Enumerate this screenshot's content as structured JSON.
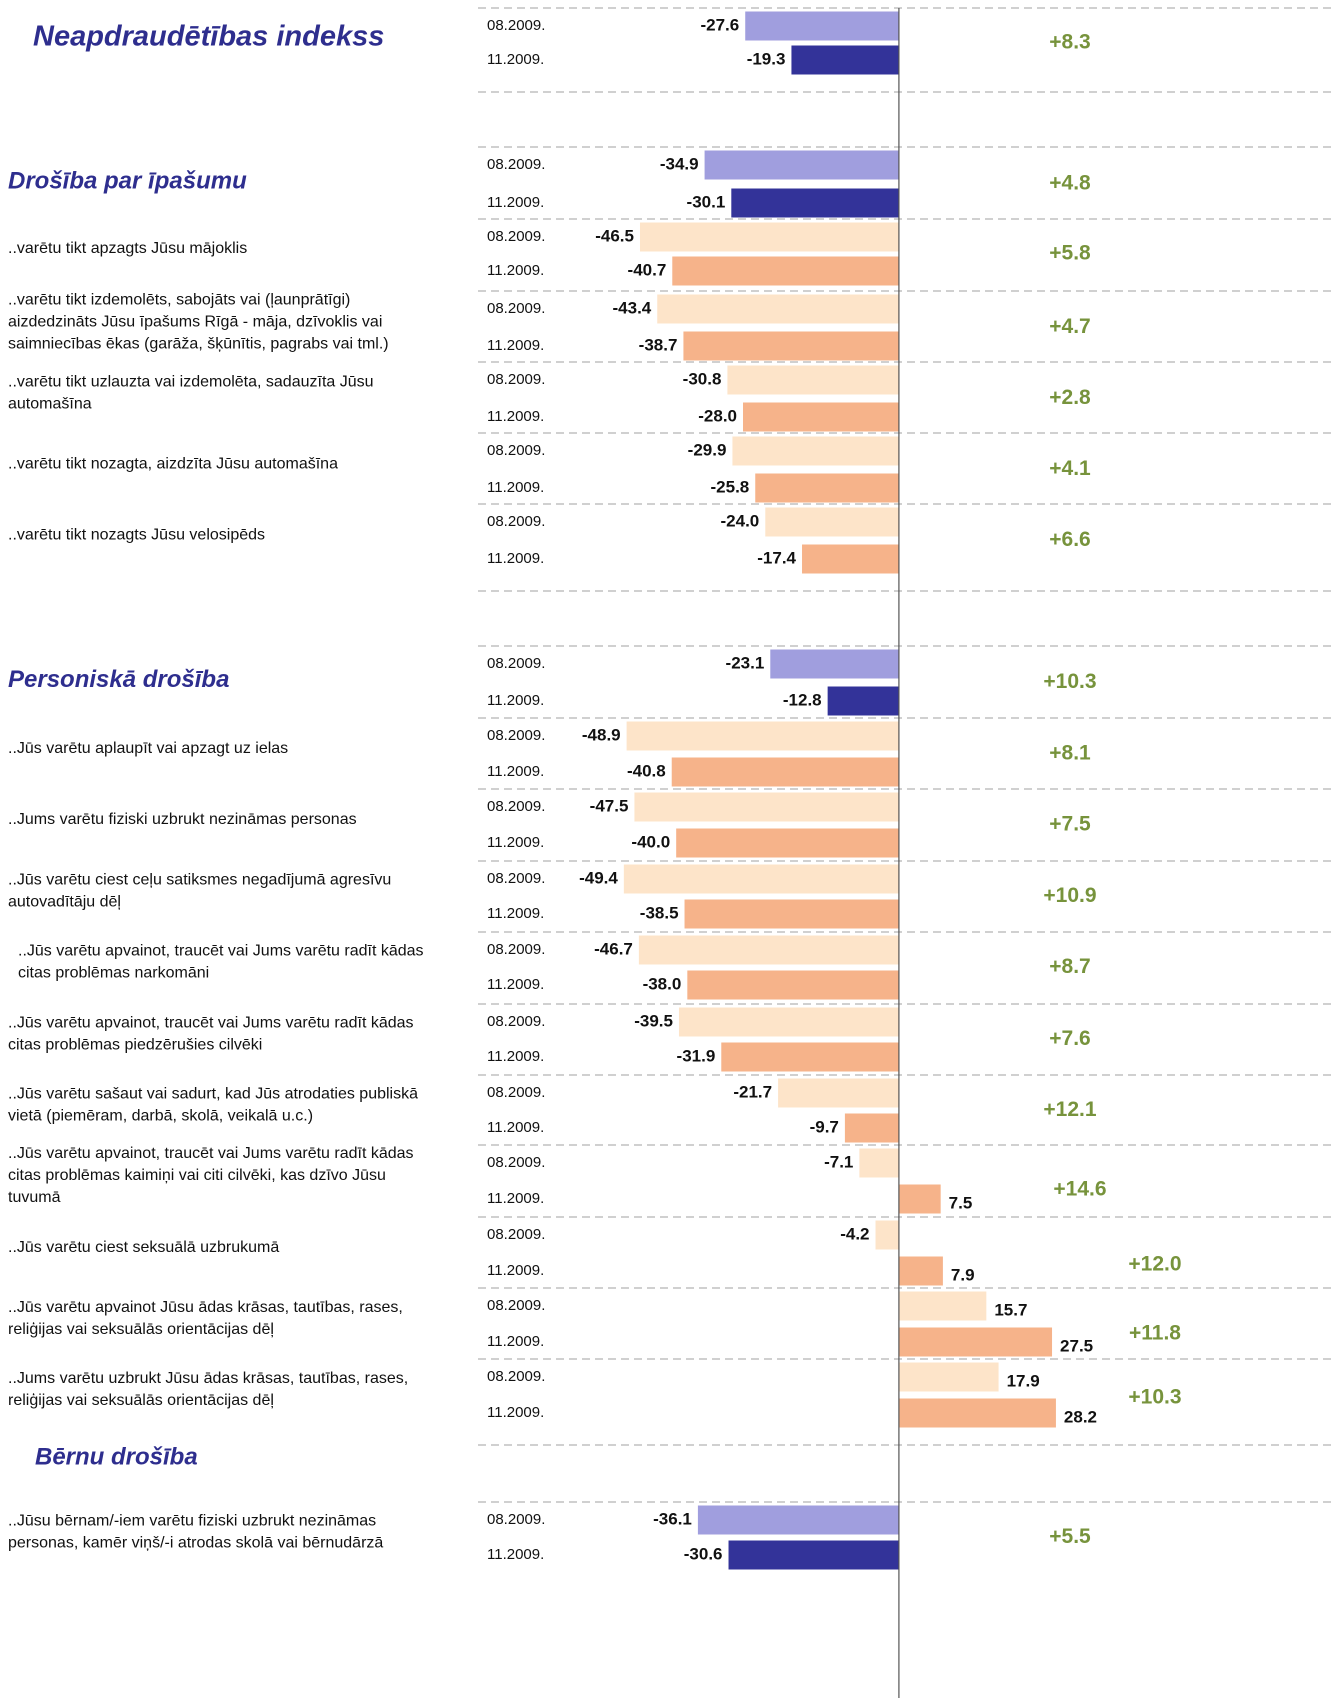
{
  "chart_data": {
    "type": "bar",
    "orientation": "horizontal",
    "xlim": [
      -50,
      60
    ],
    "change_color": "#77933c",
    "subheading": "Bērnu drošība",
    "rows": [
      {
        "label": [
          "Neapdraudētības indekss"
        ],
        "categories": [
          "08.2009.",
          "11.2009."
        ],
        "values": [
          -27.6,
          -19.3
        ],
        "value_labels": [
          "-27.6",
          "-19.3"
        ],
        "colors": [
          "#a09ede",
          "#333399"
        ],
        "change": 8.3,
        "change_label": "+8.3"
      },
      {
        "label": [
          "Drošība par īpašumu"
        ],
        "categories": [
          "08.2009.",
          "11.2009."
        ],
        "values": [
          -34.9,
          -30.1
        ],
        "value_labels": [
          "-34.9",
          "-30.1"
        ],
        "colors": [
          "#a09ede",
          "#333399"
        ],
        "change": 4.8,
        "change_label": "+4.8"
      },
      {
        "label": [
          "..varētu tikt apzagts Jūsu mājoklis"
        ],
        "categories": [
          "08.2009.",
          "11.2009."
        ],
        "values": [
          -46.5,
          -40.7
        ],
        "value_labels": [
          "-46.5",
          "-40.7"
        ],
        "colors": [
          "#fde4c9",
          "#f6b38a"
        ],
        "change": 5.8,
        "change_label": "+5.8"
      },
      {
        "label": [
          "..varētu tikt izdemolēts, sabojāts vai (ļaunprātīgi)",
          "aizdedzināts Jūsu īpašums Rīgā - māja, dzīvoklis vai",
          "saimniecības ēkas (garāža, šķūnītis, pagrabs vai tml.)"
        ],
        "categories": [
          "08.2009.",
          "11.2009."
        ],
        "values": [
          -43.4,
          -38.7
        ],
        "value_labels": [
          "-43.4",
          "-38.7"
        ],
        "colors": [
          "#fde4c9",
          "#f6b38a"
        ],
        "change": 4.7,
        "change_label": "+4.7"
      },
      {
        "label": [
          "..varētu tikt uzlauzta vai izdemolēta, sadauzīta Jūsu",
          "automašīna"
        ],
        "categories": [
          "08.2009.",
          "11.2009."
        ],
        "values": [
          -30.8,
          -28.0
        ],
        "value_labels": [
          "-30.8",
          "-28.0"
        ],
        "colors": [
          "#fde4c9",
          "#f6b38a"
        ],
        "change": 2.8,
        "change_label": "+2.8"
      },
      {
        "label": [
          "..varētu tikt nozagta, aizdzīta Jūsu automašīna"
        ],
        "categories": [
          "08.2009.",
          "11.2009."
        ],
        "values": [
          -29.9,
          -25.8
        ],
        "value_labels": [
          "-29.9",
          "-25.8"
        ],
        "colors": [
          "#fde4c9",
          "#f6b38a"
        ],
        "change": 4.1,
        "change_label": "+4.1"
      },
      {
        "label": [
          "..varētu tikt nozagts Jūsu velosipēds"
        ],
        "categories": [
          "08.2009.",
          "11.2009."
        ],
        "values": [
          -24.0,
          -17.4
        ],
        "value_labels": [
          "-24.0",
          "-17.4"
        ],
        "colors": [
          "#fde4c9",
          "#f6b38a"
        ],
        "change": 6.6,
        "change_label": "+6.6"
      },
      {
        "label": [
          "Personiskā drošība"
        ],
        "categories": [
          "08.2009.",
          "11.2009."
        ],
        "values": [
          -23.1,
          -12.8
        ],
        "value_labels": [
          "-23.1",
          "-12.8"
        ],
        "colors": [
          "#a09ede",
          "#333399"
        ],
        "change": 10.3,
        "change_label": "+10.3"
      },
      {
        "label": [
          "..Jūs varētu aplaupīt vai apzagt uz ielas"
        ],
        "categories": [
          "08.2009.",
          "11.2009."
        ],
        "values": [
          -48.9,
          -40.8
        ],
        "value_labels": [
          "-48.9",
          "-40.8"
        ],
        "colors": [
          "#fde4c9",
          "#f6b38a"
        ],
        "change": 8.1,
        "change_label": "+8.1"
      },
      {
        "label": [
          "..Jums varētu fiziski uzbrukt nezināmas personas"
        ],
        "categories": [
          "08.2009.",
          "11.2009."
        ],
        "values": [
          -47.5,
          -40.0
        ],
        "value_labels": [
          "-47.5",
          "-40.0"
        ],
        "colors": [
          "#fde4c9",
          "#f6b38a"
        ],
        "change": 7.5,
        "change_label": "+7.5"
      },
      {
        "label": [
          "..Jūs varētu ciest ceļu satiksmes negadījumā agresīvu",
          "autovadītāju dēļ"
        ],
        "categories": [
          "08.2009.",
          "11.2009."
        ],
        "values": [
          -49.4,
          -38.5
        ],
        "value_labels": [
          "-49.4",
          "-38.5"
        ],
        "colors": [
          "#fde4c9",
          "#f6b38a"
        ],
        "change": 10.9,
        "change_label": "+10.9"
      },
      {
        "label": [
          "..Jūs varētu apvainot, traucēt vai Jums varētu radīt kādas",
          "citas problēmas narkomāni"
        ],
        "categories": [
          "08.2009.",
          "11.2009."
        ],
        "values": [
          -46.7,
          -38.0
        ],
        "value_labels": [
          "-46.7",
          "-38.0"
        ],
        "colors": [
          "#fde4c9",
          "#f6b38a"
        ],
        "change": 8.7,
        "change_label": "+8.7"
      },
      {
        "label": [
          "..Jūs varētu apvainot, traucēt vai Jums varētu radīt kādas",
          "citas problēmas piedzērušies cilvēki"
        ],
        "categories": [
          "08.2009.",
          "11.2009."
        ],
        "values": [
          -39.5,
          -31.9
        ],
        "value_labels": [
          "-39.5",
          "-31.9"
        ],
        "colors": [
          "#fde4c9",
          "#f6b38a"
        ],
        "change": 7.6,
        "change_label": "+7.6"
      },
      {
        "label": [
          "..Jūs varētu sašaut vai sadurt, kad Jūs atrodaties publiskā",
          "vietā (piemēram, darbā, skolā, veikalā u.c.)"
        ],
        "categories": [
          "08.2009.",
          "11.2009."
        ],
        "values": [
          -21.7,
          -9.7
        ],
        "value_labels": [
          "-21.7",
          "-9.7"
        ],
        "colors": [
          "#fde4c9",
          "#f6b38a"
        ],
        "change": 12.1,
        "change_label": "+12.1"
      },
      {
        "label": [
          "..Jūs varētu apvainot, traucēt vai Jums varētu radīt kādas",
          "citas problēmas kaimiņi vai citi cilvēki, kas dzīvo Jūsu",
          "tuvumā"
        ],
        "categories": [
          "08.2009.",
          "11.2009."
        ],
        "values": [
          -7.1,
          7.5
        ],
        "value_labels": [
          "-7.1",
          "7.5"
        ],
        "colors": [
          "#fde4c9",
          "#f6b38a"
        ],
        "change": 14.6,
        "change_label": "+14.6"
      },
      {
        "label": [
          "..Jūs varētu ciest seksuālā uzbrukumā"
        ],
        "categories": [
          "08.2009.",
          "11.2009."
        ],
        "values": [
          -4.2,
          7.9
        ],
        "value_labels": [
          "-4.2",
          "7.9"
        ],
        "colors": [
          "#fde4c9",
          "#f6b38a"
        ],
        "change": 12.0,
        "change_label": "+12.0"
      },
      {
        "label": [
          "..Jūs varētu apvainot Jūsu ādas krāsas, tautības, rases,",
          "reliģijas vai seksuālās orientācijas dēļ"
        ],
        "categories": [
          "08.2009.",
          "11.2009."
        ],
        "values": [
          15.7,
          27.5
        ],
        "value_labels": [
          "15.7",
          "27.5"
        ],
        "colors": [
          "#fde4c9",
          "#f6b38a"
        ],
        "change": 11.8,
        "change_label": "+11.8"
      },
      {
        "label": [
          "..Jums varētu uzbrukt Jūsu ādas krāsas, tautības, rases,",
          "reliģijas vai seksuālās orientācijas dēļ"
        ],
        "categories": [
          "08.2009.",
          "11.2009."
        ],
        "values": [
          17.9,
          28.2
        ],
        "value_labels": [
          "17.9",
          "28.2"
        ],
        "colors": [
          "#fde4c9",
          "#f6b38a"
        ],
        "change": 10.3,
        "change_label": "+10.3"
      },
      {
        "label": [
          "..Jūsu bērnam/-iem varētu fiziski uzbrukt nezināmas",
          "personas, kamēr viņš/-i atrodas skolā vai bērnudārzā"
        ],
        "categories": [
          "08.2009.",
          "11.2009."
        ],
        "values": [
          -36.1,
          -30.6
        ],
        "value_labels": [
          "-36.1",
          "-30.6"
        ],
        "colors": [
          "#a09ede",
          "#333399"
        ],
        "change": 5.5,
        "change_label": "+5.5"
      }
    ]
  }
}
